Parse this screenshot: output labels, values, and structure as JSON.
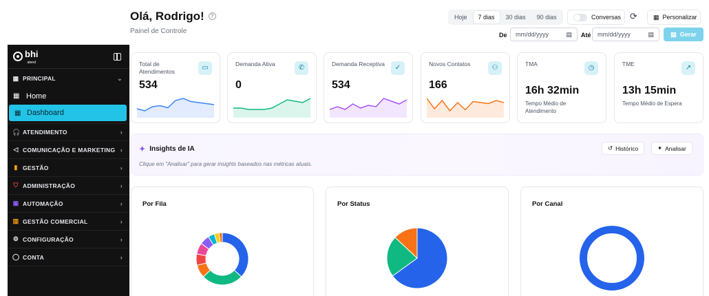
{
  "header": {
    "greeting": "Olá, Rodrigo!",
    "subtitle": "Painel de Controle",
    "periods": [
      "Hoje",
      "7 dias",
      "30 dias",
      "90 dias"
    ],
    "active_period": "7 dias",
    "toggle_label": "Conversas",
    "customize_label": "Personalizar",
    "from_label": "De",
    "to_label": "Até",
    "from_placeholder": "mm/dd/yyyy",
    "to_placeholder": "mm/dd/yyyy",
    "generate_label": "Gerar"
  },
  "sidebar": {
    "logo": "bhi",
    "logo_sub": "atend",
    "principal": "PRINCIPAL",
    "home": "Home",
    "dashboard": "Dashboard",
    "sections": [
      {
        "label": "ATENDIMENTO",
        "icon": "headset-icon",
        "color": "#3b82f6"
      },
      {
        "label": "COMUNICAÇÃO E MARKETING",
        "icon": "megaphone-icon",
        "color": "#e5e7eb"
      },
      {
        "label": "GESTÃO",
        "icon": "bar-chart-icon",
        "color": "#f59e0b"
      },
      {
        "label": "ADMINISTRAÇÃO",
        "icon": "shield-icon",
        "color": "#ef4444"
      },
      {
        "label": "AUTOMAÇÃO",
        "icon": "robot-icon",
        "color": "#8b5cf6"
      },
      {
        "label": "GESTÃO COMERCIAL",
        "icon": "chart-icon",
        "color": "#f59e0b"
      },
      {
        "label": "CONFIGURAÇÃO",
        "icon": "gear-icon",
        "color": "#e5e7eb"
      },
      {
        "label": "CONTA",
        "icon": "user-icon",
        "color": "#e5e7eb"
      }
    ]
  },
  "kpis": [
    {
      "title": "Total de Atendimentos",
      "value": "534",
      "icon": "chat-icon",
      "color": "#3b82f6",
      "trend": [
        14,
        12,
        16,
        17,
        15,
        22,
        24,
        21,
        20,
        19,
        18
      ]
    },
    {
      "title": "Demanda Ativa",
      "value": "0",
      "icon": "phone-icon",
      "color": "#10b981",
      "trend": [
        12,
        12,
        11,
        11,
        11,
        12,
        15,
        18,
        17,
        16,
        19
      ]
    },
    {
      "title": "Demanda Receptiva",
      "value": "534",
      "icon": "user-check-icon",
      "color": "#a855f7",
      "trend": [
        12,
        14,
        12,
        16,
        13,
        15,
        14,
        20,
        18,
        16,
        19
      ]
    },
    {
      "title": "Novos Contatos",
      "value": "166",
      "icon": "users-icon",
      "color": "#f97316",
      "trend": [
        22,
        12,
        20,
        10,
        18,
        11,
        19,
        18,
        17,
        20,
        18
      ]
    },
    {
      "title": "TMA",
      "value": "16h 32min",
      "desc": "Tempo Médio de Atendimento",
      "icon": "clock-icon"
    },
    {
      "title": "TME",
      "value": "13h 15min",
      "desc": "Tempo Médio de Espera",
      "icon": "trend-up-icon"
    }
  ],
  "insights": {
    "title": "Insights de IA",
    "hint": "Clique em \"Analisar\" para gerar insights baseados nas métricas atuais.",
    "history_label": "Histórico",
    "analyze_label": "Analisar"
  },
  "chart_data": [
    {
      "type": "pie",
      "title": "Por Fila",
      "donut": true,
      "values": [
        37,
        26,
        8,
        7,
        7,
        6,
        4,
        3,
        2
      ],
      "colors": [
        "#2563eb",
        "#10b981",
        "#f97316",
        "#ef4444",
        "#ec4899",
        "#8b5cf6",
        "#06b6d4",
        "#facc15",
        "#f97316"
      ]
    },
    {
      "type": "pie",
      "title": "Por Status",
      "donut": false,
      "values": [
        65,
        22,
        13
      ],
      "colors": [
        "#2563eb",
        "#10b981",
        "#f97316"
      ]
    },
    {
      "type": "pie",
      "title": "Por Canal",
      "donut": true,
      "values": [
        100
      ],
      "colors": [
        "#2563eb"
      ]
    }
  ]
}
